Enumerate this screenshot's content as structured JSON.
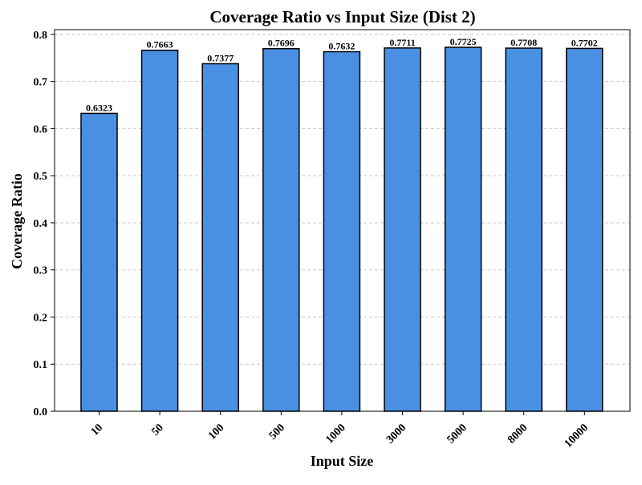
{
  "chart_data": {
    "type": "bar",
    "title": "Coverage Ratio vs Input Size (Dist 2)",
    "xlabel": "Input Size",
    "ylabel": "Coverage Ratio",
    "categories": [
      "10",
      "50",
      "100",
      "500",
      "1000",
      "3000",
      "5000",
      "8000",
      "10000"
    ],
    "values": [
      0.6323,
      0.7663,
      0.7377,
      0.7696,
      0.7632,
      0.7711,
      0.7725,
      0.7708,
      0.7702
    ],
    "data_labels": [
      "0.6323",
      "0.7663",
      "0.7377",
      "0.7696",
      "0.7632",
      "0.7711",
      "0.7725",
      "0.7708",
      "0.7702"
    ],
    "ylim": [
      0,
      0.81
    ],
    "yticks": [
      0.0,
      0.1,
      0.2,
      0.3,
      0.4,
      0.5,
      0.6,
      0.7,
      0.8
    ],
    "ytick_labels": [
      "0.0",
      "0.1",
      "0.2",
      "0.3",
      "0.4",
      "0.5",
      "0.6",
      "0.7",
      "0.8"
    ],
    "grid": "horizontal dashed",
    "colors": {
      "bar_fill": "#4a90e2",
      "bar_edge": "#000000",
      "grid": "#c8c8c8",
      "axis": "#000000",
      "text": "#000000"
    }
  }
}
